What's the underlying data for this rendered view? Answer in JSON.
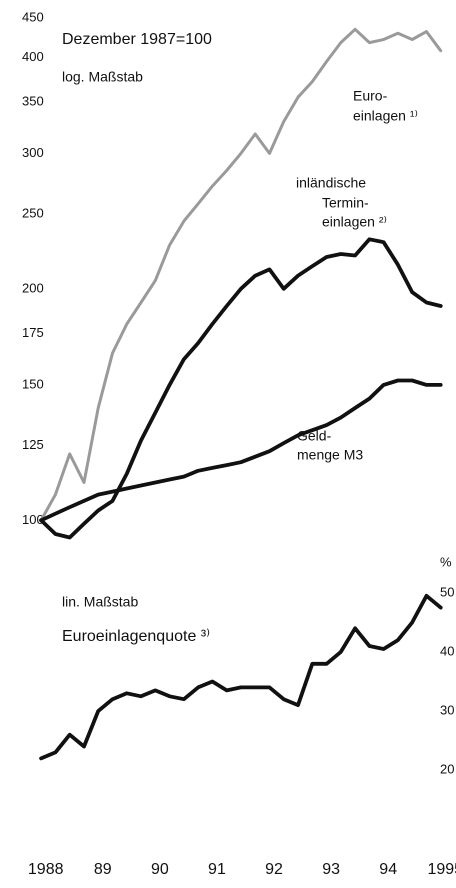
{
  "chart_data": [
    {
      "type": "line",
      "scale": "log",
      "annotations": [
        "Dezember 1987=100",
        "log. Maßstab"
      ],
      "x": [
        1987.92,
        1988.17,
        1988.42,
        1988.67,
        1988.92,
        1989.17,
        1989.42,
        1989.67,
        1989.92,
        1990.17,
        1990.42,
        1990.67,
        1990.92,
        1991.17,
        1991.42,
        1991.67,
        1991.92,
        1992.17,
        1992.42,
        1992.67,
        1992.92,
        1993.17,
        1993.42,
        1993.67,
        1993.92,
        1994.17,
        1994.42,
        1994.67,
        1994.92
      ],
      "xlim": [
        1987.9,
        1995.1
      ],
      "ylim": [
        94,
        450
      ],
      "yticks": [
        100,
        125,
        150,
        175,
        200,
        250,
        300,
        350,
        400,
        450
      ],
      "series": [
        {
          "name": [
            "Euro-",
            "einlagen ¹⁾"
          ],
          "color": "#9a9a9a",
          "values": [
            100,
            108,
            122,
            112,
            140,
            165,
            180,
            192,
            205,
            228,
            245,
            258,
            272,
            285,
            300,
            318,
            300,
            330,
            355,
            372,
            395,
            418,
            435,
            418,
            422,
            430,
            422,
            432,
            408
          ]
        },
        {
          "name": [
            "inländische",
            "Termin-",
            "einlagen ²⁾"
          ],
          "color": "#111111",
          "values": [
            100,
            96,
            95,
            99,
            103,
            106,
            115,
            127,
            138,
            150,
            162,
            170,
            180,
            190,
            200,
            208,
            212,
            200,
            208,
            214,
            220,
            222,
            221,
            232,
            230,
            215,
            198,
            192,
            190
          ]
        },
        {
          "name": [
            "Geld-",
            "menge M3"
          ],
          "color": "#111111",
          "values": [
            100,
            102,
            104,
            106,
            108,
            109,
            110,
            111,
            112,
            113,
            114,
            116,
            117,
            118,
            119,
            121,
            123,
            126,
            129,
            131,
            133,
            136,
            140,
            144,
            150,
            152,
            152,
            150,
            150
          ]
        }
      ]
    },
    {
      "type": "line",
      "scale": "linear",
      "annotations": [
        "lin. Maßstab",
        "Euroeinlagenquote ³⁾"
      ],
      "y_unit": "%",
      "x": [
        1987.92,
        1988.17,
        1988.42,
        1988.67,
        1988.92,
        1989.17,
        1989.42,
        1989.67,
        1989.92,
        1990.17,
        1990.42,
        1990.67,
        1990.92,
        1991.17,
        1991.42,
        1991.67,
        1991.92,
        1992.17,
        1992.42,
        1992.67,
        1992.92,
        1993.17,
        1993.42,
        1993.67,
        1993.92,
        1994.17,
        1994.42,
        1994.67,
        1994.92
      ],
      "xlim": [
        1987.9,
        1995.1
      ],
      "xticks": [
        {
          "value": 1988,
          "label": "1988"
        },
        {
          "value": 1989,
          "label": "89"
        },
        {
          "value": 1990,
          "label": "90"
        },
        {
          "value": 1991,
          "label": "91"
        },
        {
          "value": 1992,
          "label": "92"
        },
        {
          "value": 1993,
          "label": "93"
        },
        {
          "value": 1994,
          "label": "94"
        },
        1995
      ],
      "ylim": [
        18,
        52
      ],
      "yticks": [
        20,
        30,
        40,
        50
      ],
      "series": [
        {
          "name": null,
          "color": "#111111",
          "values": [
            22,
            23,
            26,
            24,
            30,
            32,
            33,
            32.5,
            33.5,
            32.5,
            32,
            34,
            35,
            33.5,
            34,
            34,
            34,
            32,
            31,
            38,
            38,
            40,
            44,
            41,
            40.5,
            42,
            45,
            49.5,
            47.5
          ]
        }
      ]
    }
  ]
}
